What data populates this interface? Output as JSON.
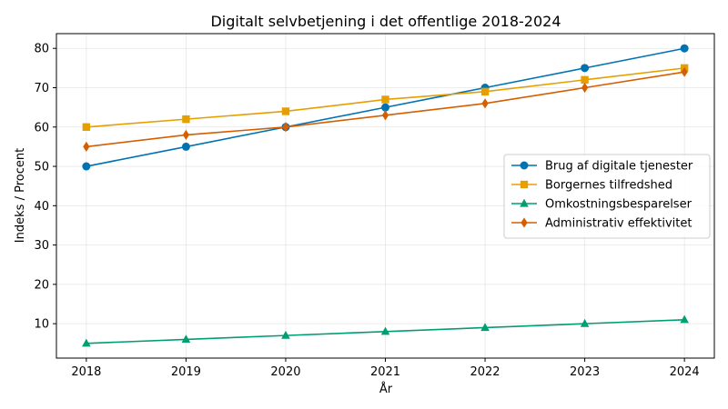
{
  "chart_data": {
    "type": "line",
    "title": "Digitalt selvbetjening i det offentlige 2018-2024",
    "xlabel": "År",
    "ylabel": "Indeks / Procent",
    "x": [
      2018,
      2019,
      2020,
      2021,
      2022,
      2023,
      2024
    ],
    "xlim": [
      2017.7,
      2024.3
    ],
    "ylim": [
      1.25,
      83.75
    ],
    "yticks": [
      10,
      20,
      30,
      40,
      50,
      60,
      70,
      80
    ],
    "grid": true,
    "legend_position": "center-right",
    "series": [
      {
        "name": "Brug af digitale tjenester",
        "values": [
          50,
          55,
          60,
          65,
          70,
          75,
          80
        ],
        "color": "#0072B2",
        "marker": "circle"
      },
      {
        "name": "Borgernes tilfredshed",
        "values": [
          60,
          62,
          64,
          67,
          69,
          72,
          75
        ],
        "color": "#E69F00",
        "marker": "square"
      },
      {
        "name": "Omkostningsbesparelser",
        "values": [
          5,
          6,
          7,
          8,
          9,
          10,
          11
        ],
        "color": "#009E73",
        "marker": "triangle"
      },
      {
        "name": "Administrativ effektivitet",
        "values": [
          55,
          58,
          60,
          63,
          66,
          70,
          74
        ],
        "color": "#D55E00",
        "marker": "diamond"
      }
    ]
  }
}
